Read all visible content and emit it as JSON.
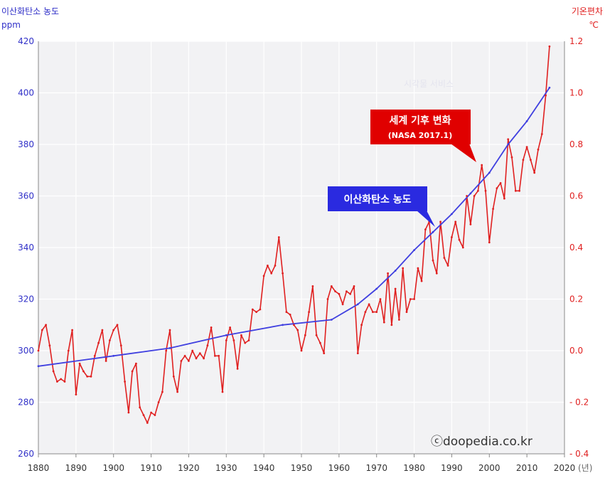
{
  "chart_data": {
    "type": "line",
    "left_axis": {
      "title": "이산화탄소 농도",
      "unit": "ppm",
      "range": [
        260,
        420
      ],
      "ticks": [
        260,
        280,
        300,
        320,
        340,
        360,
        380,
        400,
        420
      ],
      "color": "#3030c8"
    },
    "right_axis": {
      "title": "기온편차",
      "unit": "℃",
      "range": [
        -0.4,
        1.2
      ],
      "tick_labels": [
        "- 0.4",
        "- 0.2",
        "0.0",
        "0.2",
        "0.4",
        "0.6",
        "0.8",
        "1.0",
        "1.2"
      ],
      "tick_values": [
        -0.4,
        -0.2,
        0.0,
        0.2,
        0.4,
        0.6,
        0.8,
        1.0,
        1.2
      ],
      "color": "#e02020"
    },
    "x_axis": {
      "range": [
        1880,
        2020
      ],
      "ticks": [
        1880,
        1890,
        1900,
        1910,
        1920,
        1930,
        1940,
        1950,
        1960,
        1970,
        1980,
        1990,
        2000,
        2010,
        2020
      ],
      "unit": "(년)"
    },
    "grid": true,
    "series": [
      {
        "name": "이산화탄소 농도",
        "axis": "left",
        "color": "#4040e0",
        "x": [
          1880,
          1900,
          1915,
          1930,
          1945,
          1958,
          1965,
          1970,
          1975,
          1980,
          1985,
          1990,
          1995,
          2000,
          2005,
          2010,
          2016
        ],
        "y": [
          294,
          298,
          301,
          306,
          310,
          312,
          318,
          324,
          331,
          339,
          346,
          353,
          361,
          369,
          380,
          389,
          402
        ]
      },
      {
        "name": "세계 기후 변화",
        "axis": "right",
        "color": "#e02020",
        "x": [
          1880,
          1881,
          1882,
          1883,
          1884,
          1885,
          1886,
          1887,
          1888,
          1889,
          1890,
          1891,
          1892,
          1893,
          1894,
          1895,
          1896,
          1897,
          1898,
          1899,
          1900,
          1901,
          1902,
          1903,
          1904,
          1905,
          1906,
          1907,
          1908,
          1909,
          1910,
          1911,
          1912,
          1913,
          1914,
          1915,
          1916,
          1917,
          1918,
          1919,
          1920,
          1921,
          1922,
          1923,
          1924,
          1925,
          1926,
          1927,
          1928,
          1929,
          1930,
          1931,
          1932,
          1933,
          1934,
          1935,
          1936,
          1937,
          1938,
          1939,
          1940,
          1941,
          1942,
          1943,
          1944,
          1945,
          1946,
          1947,
          1948,
          1949,
          1950,
          1951,
          1952,
          1953,
          1954,
          1955,
          1956,
          1957,
          1958,
          1959,
          1960,
          1961,
          1962,
          1963,
          1964,
          1965,
          1966,
          1967,
          1968,
          1969,
          1970,
          1971,
          1972,
          1973,
          1974,
          1975,
          1976,
          1977,
          1978,
          1979,
          1980,
          1981,
          1982,
          1983,
          1984,
          1985,
          1986,
          1987,
          1988,
          1989,
          1990,
          1991,
          1992,
          1993,
          1994,
          1995,
          1996,
          1997,
          1998,
          1999,
          2000,
          2001,
          2002,
          2003,
          2004,
          2005,
          2006,
          2007,
          2008,
          2009,
          2010,
          2011,
          2012,
          2013,
          2014,
          2015,
          2016
        ],
        "y": [
          0.0,
          0.08,
          0.1,
          0.02,
          -0.08,
          -0.12,
          -0.11,
          -0.12,
          0.0,
          0.08,
          -0.17,
          -0.05,
          -0.08,
          -0.1,
          -0.1,
          -0.02,
          0.03,
          0.08,
          -0.04,
          0.04,
          0.08,
          0.1,
          0.02,
          -0.12,
          -0.24,
          -0.08,
          -0.05,
          -0.22,
          -0.25,
          -0.28,
          -0.24,
          -0.25,
          -0.2,
          -0.16,
          0.0,
          0.08,
          -0.1,
          -0.16,
          -0.04,
          -0.02,
          -0.04,
          0.0,
          -0.03,
          -0.01,
          -0.03,
          0.02,
          0.09,
          -0.02,
          -0.02,
          -0.16,
          0.04,
          0.09,
          0.04,
          -0.07,
          0.06,
          0.03,
          0.04,
          0.16,
          0.15,
          0.16,
          0.29,
          0.33,
          0.3,
          0.33,
          0.44,
          0.3,
          0.15,
          0.14,
          0.1,
          0.08,
          0.0,
          0.06,
          0.15,
          0.25,
          0.06,
          0.03,
          -0.01,
          0.2,
          0.25,
          0.23,
          0.22,
          0.18,
          0.23,
          0.22,
          0.25,
          -0.01,
          0.1,
          0.15,
          0.18,
          0.15,
          0.15,
          0.2,
          0.11,
          0.3,
          0.1,
          0.24,
          0.12,
          0.32,
          0.15,
          0.2,
          0.2,
          0.32,
          0.27,
          0.47,
          0.5,
          0.35,
          0.3,
          0.5,
          0.36,
          0.33,
          0.44,
          0.5,
          0.43,
          0.4,
          0.6,
          0.49,
          0.6,
          0.62,
          0.72,
          0.62,
          0.42,
          0.55,
          0.63,
          0.65,
          0.59,
          0.82,
          0.75,
          0.62,
          0.62,
          0.74,
          0.79,
          0.74,
          0.69,
          0.78,
          0.84,
          0.99,
          1.18
        ]
      }
    ],
    "callouts": [
      {
        "series": 1,
        "lines": [
          "세계 기후 변화",
          "(NASA  2017.1)"
        ]
      },
      {
        "series": 0,
        "lines": [
          "이산화탄소 농도"
        ]
      }
    ],
    "credit": "ⓒdoopedia.co.kr",
    "watermark": "시각물 서비스"
  }
}
